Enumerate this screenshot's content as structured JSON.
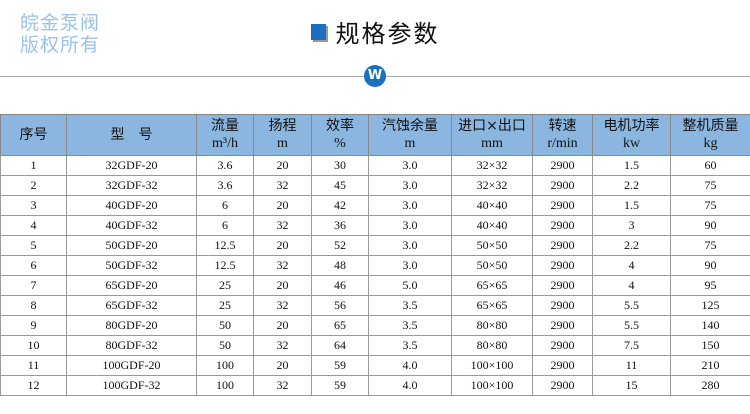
{
  "title": "规格参数",
  "logo_letter": "W",
  "headers": [
    {
      "label": "序号",
      "unit": ""
    },
    {
      "label": "型　号",
      "unit": ""
    },
    {
      "label": "流量",
      "unit": "m³/h"
    },
    {
      "label": "扬程",
      "unit": "m"
    },
    {
      "label": "效率",
      "unit": "%"
    },
    {
      "label": "汽蚀余量",
      "unit": "m"
    },
    {
      "label": "进口×出口",
      "unit": "mm"
    },
    {
      "label": "转速",
      "unit": "r/min"
    },
    {
      "label": "电机功率",
      "unit": "kw"
    },
    {
      "label": "整机质量",
      "unit": "kg"
    }
  ],
  "rows": [
    [
      "1",
      "32GDF-20",
      "3.6",
      "20",
      "30",
      "3.0",
      "32×32",
      "2900",
      "1.5",
      "60"
    ],
    [
      "2",
      "32GDF-32",
      "3.6",
      "32",
      "45",
      "3.0",
      "32×32",
      "2900",
      "2.2",
      "75"
    ],
    [
      "3",
      "40GDF-20",
      "6",
      "20",
      "42",
      "3.0",
      "40×40",
      "2900",
      "1.5",
      "75"
    ],
    [
      "4",
      "40GDF-32",
      "6",
      "32",
      "36",
      "3.0",
      "40×40",
      "2900",
      "3",
      "90"
    ],
    [
      "5",
      "50GDF-20",
      "12.5",
      "20",
      "52",
      "3.0",
      "50×50",
      "2900",
      "2.2",
      "75"
    ],
    [
      "6",
      "50GDF-32",
      "12.5",
      "32",
      "48",
      "3.0",
      "50×50",
      "2900",
      "4",
      "90"
    ],
    [
      "7",
      "65GDF-20",
      "25",
      "20",
      "46",
      "5.0",
      "65×65",
      "2900",
      "4",
      "95"
    ],
    [
      "8",
      "65GDF-32",
      "25",
      "32",
      "56",
      "3.5",
      "65×65",
      "2900",
      "5.5",
      "125"
    ],
    [
      "9",
      "80GDF-20",
      "50",
      "20",
      "65",
      "3.5",
      "80×80",
      "2900",
      "5.5",
      "140"
    ],
    [
      "10",
      "80GDF-32",
      "50",
      "32",
      "64",
      "3.5",
      "80×80",
      "2900",
      "7.5",
      "150"
    ],
    [
      "11",
      "100GDF-20",
      "100",
      "20",
      "59",
      "4.0",
      "100×100",
      "2900",
      "11",
      "210"
    ],
    [
      "12",
      "100GDF-32",
      "100",
      "32",
      "59",
      "4.0",
      "100×100",
      "2900",
      "15",
      "280"
    ]
  ],
  "watermark": [
    "皖金泵阀",
    "版权所有"
  ],
  "colors": {
    "accent": "#1a6fbe",
    "header_bg": "#8ab6e0"
  }
}
